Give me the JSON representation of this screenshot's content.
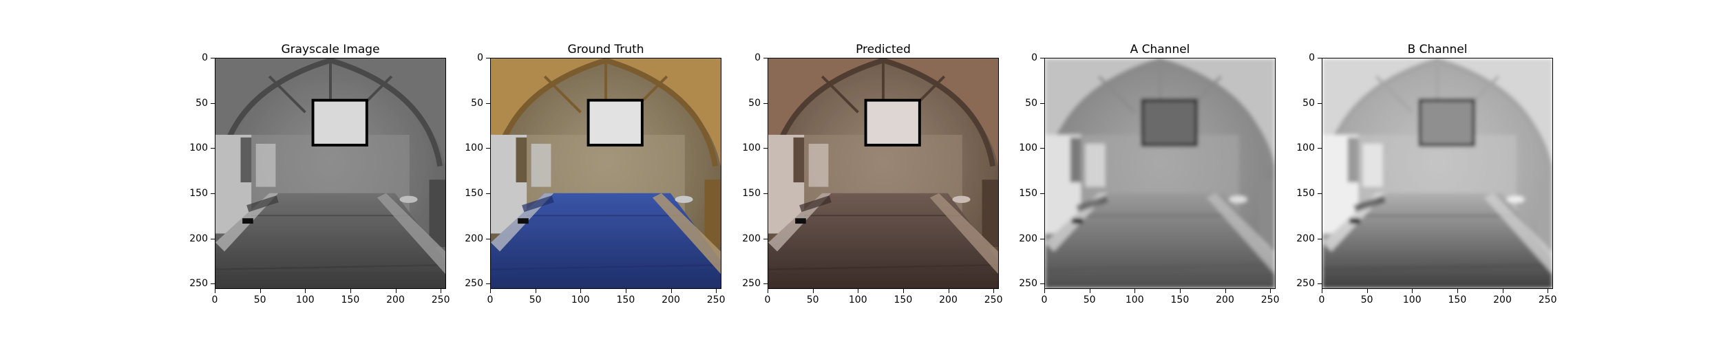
{
  "panels": [
    {
      "title": "Grayscale Image",
      "style": "gray"
    },
    {
      "title": "Ground Truth",
      "style": "truth"
    },
    {
      "title": "Predicted",
      "style": "pred"
    },
    {
      "title": "A Channel",
      "style": "achan"
    },
    {
      "title": "B Channel",
      "style": "bchan"
    }
  ],
  "axes": {
    "x_ticks": [
      "0",
      "50",
      "100",
      "150",
      "200",
      "250"
    ],
    "y_ticks": [
      "0",
      "50",
      "100",
      "150",
      "200",
      "250"
    ],
    "x_range": [
      0,
      256
    ],
    "y_range": [
      0,
      256
    ]
  },
  "colors": {
    "truth_tarp": "#3a55a8",
    "truth_wood": "#b08a4e",
    "pred_tint": "#8a6a55"
  }
}
